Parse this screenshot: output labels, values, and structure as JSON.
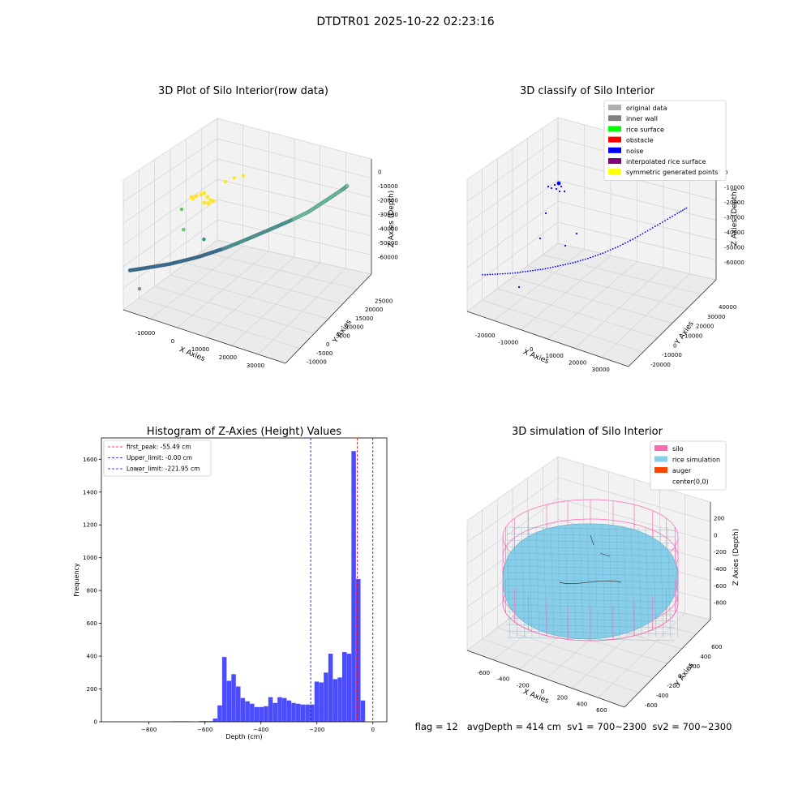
{
  "suptitle": "DTDTR01 2025-10-22 02:23:16",
  "status_line": "flag = 12   avgDepth = 414 cm  sv1 = 700~2300  sv2 = 700~2300",
  "chart_data": [
    {
      "type": "scatter",
      "projection": "3d",
      "title": "3D Plot of Silo Interior(row data)",
      "xlabel": "X Axies",
      "ylabel": "Y Axies",
      "zlabel": "Z Axies (Depth)",
      "xticks": [
        "-10000",
        "0",
        "10000",
        "20000",
        "30000"
      ],
      "yticks": [
        "-10000",
        "-5000",
        "0",
        "5000",
        "10000",
        "15000",
        "20000",
        "25000"
      ],
      "zticks": [
        "0",
        "-10000",
        "-20000",
        "-30000",
        "-40000",
        "-50000",
        "-60000"
      ],
      "xlim": [
        -15000,
        32000
      ],
      "ylim": [
        -10000,
        28000
      ],
      "zlim": [
        -65000,
        2000
      ],
      "grid": true,
      "colormap": "viridis",
      "series": [
        {
          "x": [
            -14500,
            -12000,
            -9000,
            -6000,
            -3000,
            0,
            3000,
            6000,
            9000,
            12000,
            15000,
            18000,
            21000,
            24000,
            26000,
            28000,
            30000,
            31000
          ],
          "y": [
            -8000,
            -6500,
            -5000,
            -3500,
            -2000,
            -500,
            1000,
            2500,
            4000,
            5500,
            7000,
            8500,
            10000,
            12000,
            14000,
            16000,
            18000,
            19000
          ],
          "z": [
            -45000,
            -44000,
            -42500,
            -41000,
            -39000,
            -37000,
            -34500,
            -32000,
            -29000,
            -26000,
            -23000,
            -20000,
            -17000,
            -14000,
            -11500,
            -9000,
            -6500,
            -5000
          ]
        }
      ],
      "scattered_points": [
        {
          "x": -11000,
          "y": -9000,
          "z": -52000,
          "color": "#8c8c8c"
        },
        {
          "x": -6000,
          "y": 2000,
          "z": -28000,
          "color": "#5ec962"
        },
        {
          "x": -8000,
          "y": 4000,
          "z": -20000,
          "color": "#5ec962"
        },
        {
          "x": 0,
          "y": 2000,
          "z": -30000,
          "color": "#21918c"
        },
        {
          "x": -3000,
          "y": 15000,
          "z": -14000,
          "color": "#fde725"
        },
        {
          "x": -1000,
          "y": 16000,
          "z": -12000,
          "color": "#fde725"
        },
        {
          "x": 1000,
          "y": 17000,
          "z": -11000,
          "color": "#fde725"
        }
      ]
    },
    {
      "type": "scatter",
      "projection": "3d",
      "title": "3D classify of Silo Interior",
      "xlabel": "X Axies",
      "ylabel": "Y Axies",
      "zlabel": "Z Axies (Depth)",
      "xticks": [
        "-20000",
        "-10000",
        "0",
        "10000",
        "20000",
        "30000"
      ],
      "yticks": [
        "-20000",
        "-10000",
        "0",
        "10000",
        "20000",
        "30000",
        "40000"
      ],
      "zticks": [
        "0",
        "-10000",
        "-20000",
        "-30000",
        "-40000",
        "-50000",
        "-60000"
      ],
      "xlim": [
        -25000,
        35000
      ],
      "ylim": [
        -20000,
        42000
      ],
      "zlim": [
        -65000,
        2000
      ],
      "grid": true,
      "legend": {
        "location": "upper-right",
        "entries": [
          {
            "label": "original data",
            "color": "#b0b0b0"
          },
          {
            "label": "inner wall",
            "color": "#808080"
          },
          {
            "label": "rice surface",
            "color": "#00ff00"
          },
          {
            "label": "obstacle",
            "color": "#ff0000"
          },
          {
            "label": "noise",
            "color": "#0000ff"
          },
          {
            "label": "interpolated rice surface",
            "color": "#800080"
          },
          {
            "label": "symmetric generated points",
            "color": "#ffff00"
          }
        ]
      },
      "series": [
        {
          "name": "noise",
          "x": [
            -22000,
            -18000,
            -14000,
            -10000,
            -6000,
            -2000,
            2000,
            6000,
            10000,
            14000,
            18000,
            22000,
            26000,
            30000,
            33000
          ],
          "y": [
            -15000,
            -12000,
            -9000,
            -6000,
            -3000,
            0,
            3000,
            6000,
            9000,
            12000,
            15000,
            18000,
            21000,
            24000,
            26000
          ],
          "z": [
            -47000,
            -46500,
            -46000,
            -45000,
            -44000,
            -42500,
            -41000,
            -39000,
            -36500,
            -33500,
            -30000,
            -26000,
            -22000,
            -18000,
            -15000
          ]
        }
      ]
    },
    {
      "type": "bar",
      "subtype": "histogram",
      "title": "Histogram of Z-Axies (Height) Values",
      "xlabel": "Depth (cm)",
      "ylabel": "Frequency",
      "xlim": [
        -970,
        50
      ],
      "ylim": [
        0,
        1730
      ],
      "xticks": [
        -800,
        -600,
        -400,
        -200,
        0
      ],
      "yticks": [
        0,
        200,
        400,
        600,
        800,
        1000,
        1200,
        1400,
        1600
      ],
      "bin_width": 16.5,
      "bar_color": "#0000ff",
      "bar_alpha": 0.7,
      "bins": [
        {
          "start": -720,
          "count": 3
        },
        {
          "start": -703.5,
          "count": 3
        },
        {
          "start": -687,
          "count": 3
        },
        {
          "start": -670.5,
          "count": 3
        },
        {
          "start": -654,
          "count": 2
        },
        {
          "start": -637.5,
          "count": 0
        },
        {
          "start": -621,
          "count": 4
        },
        {
          "start": -604.5,
          "count": 4
        },
        {
          "start": -588,
          "count": 4
        },
        {
          "start": -571.5,
          "count": 20
        },
        {
          "start": -555,
          "count": 100
        },
        {
          "start": -538.5,
          "count": 395
        },
        {
          "start": -522,
          "count": 250
        },
        {
          "start": -505.5,
          "count": 290
        },
        {
          "start": -489,
          "count": 215
        },
        {
          "start": -472.5,
          "count": 145
        },
        {
          "start": -456,
          "count": 125
        },
        {
          "start": -439.5,
          "count": 110
        },
        {
          "start": -423,
          "count": 90
        },
        {
          "start": -406.5,
          "count": 90
        },
        {
          "start": -390,
          "count": 95
        },
        {
          "start": -373.5,
          "count": 150
        },
        {
          "start": -357,
          "count": 115
        },
        {
          "start": -340.5,
          "count": 150
        },
        {
          "start": -324,
          "count": 145
        },
        {
          "start": -307.5,
          "count": 130
        },
        {
          "start": -291,
          "count": 115
        },
        {
          "start": -274.5,
          "count": 110
        },
        {
          "start": -258,
          "count": 105
        },
        {
          "start": -241.5,
          "count": 105
        },
        {
          "start": -225,
          "count": 105
        },
        {
          "start": -208.5,
          "count": 245
        },
        {
          "start": -192,
          "count": 240
        },
        {
          "start": -175.5,
          "count": 300
        },
        {
          "start": -159,
          "count": 415
        },
        {
          "start": -142.5,
          "count": 260
        },
        {
          "start": -126,
          "count": 270
        },
        {
          "start": -109.5,
          "count": 425
        },
        {
          "start": -93,
          "count": 415
        },
        {
          "start": -76.5,
          "count": 1650
        },
        {
          "start": -60,
          "count": 870
        },
        {
          "start": -43.5,
          "count": 130
        },
        {
          "start": -27,
          "count": 0
        }
      ],
      "vlines": [
        {
          "label": "first_peak: -55.49 cm",
          "x": -55.49,
          "color": "#ff0000"
        },
        {
          "label": "Upper_limit: -0.00 cm",
          "x": 0,
          "color": "#0000ff"
        },
        {
          "label": "Lower_limit: -221.95 cm",
          "x": -221.95,
          "color": "#0000ff"
        }
      ],
      "legend": {
        "location": "upper-left"
      }
    },
    {
      "type": "surface",
      "projection": "3d",
      "title": "3D simulation of Silo Interior",
      "xlabel": "X Axies",
      "ylabel": "Y Axies",
      "zlabel": "Z Axies (Depth)",
      "xticks": [
        "-600",
        "-400",
        "-200",
        "0",
        "200",
        "400",
        "600"
      ],
      "yticks": [
        "-600",
        "-400",
        "-200",
        "0",
        "200",
        "400",
        "600"
      ],
      "zticks": [
        "200",
        "0",
        "-200",
        "-400",
        "-600",
        "-800"
      ],
      "xlim": [
        -650,
        650
      ],
      "ylim": [
        -650,
        650
      ],
      "zlim": [
        -950,
        300
      ],
      "grid": true,
      "legend": {
        "location": "upper-right",
        "entries": [
          {
            "label": "silo",
            "color": "#ff69b4"
          },
          {
            "label": "rice simulation",
            "color": "#87ceeb"
          },
          {
            "label": "auger",
            "color": "#ff4500"
          },
          {
            "label": "center(0,0)",
            "color": "#ffffff"
          }
        ]
      },
      "silo": {
        "radius": 600,
        "z_top": 0,
        "z_bottom": -950,
        "color": "#ff69b4"
      },
      "rice_surface": {
        "radius": 600,
        "avg_depth": -414,
        "color": "#87ceeb"
      }
    }
  ]
}
